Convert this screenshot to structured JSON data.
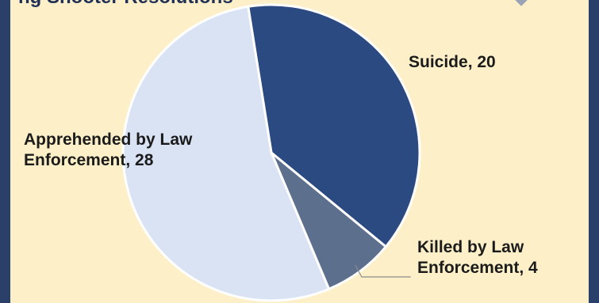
{
  "header": {
    "partial_title": "ng Shooter Resolutions"
  },
  "chart_data": {
    "type": "pie",
    "title": "",
    "slices": [
      {
        "label": "Suicide",
        "value": 20,
        "color": "#2c4a82",
        "display": "Suicide, 20"
      },
      {
        "label": "Killed by Law Enforcement",
        "value": 4,
        "color": "#5c6f8d",
        "display_line1": "Killed by Law",
        "display_line2": "Enforcement, 4"
      },
      {
        "label": "Apprehended by Law Enforcement",
        "value": 28,
        "color": "#d9e3f4",
        "display_line1": "Apprehended by Law",
        "display_line2": "Enforcement, 28"
      }
    ],
    "legend": "none",
    "start_angle_deg": -9
  }
}
